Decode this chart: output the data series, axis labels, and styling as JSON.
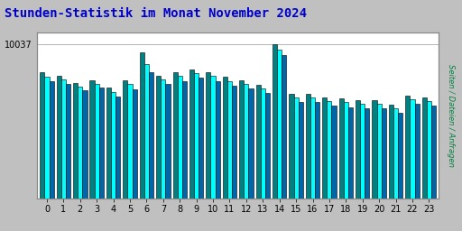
{
  "title": "Stunden-Statistik im Monat November 2024",
  "title_color": "#0000cc",
  "ylabel_right": "Seiten / Dateien / Anfragen",
  "ylabel_right_color": "#008040",
  "ytick_label": "10037",
  "background_color": "#c0c0c0",
  "plot_bg_color": "#ffffff",
  "bar_border_color": "#000000",
  "hours": [
    0,
    1,
    2,
    3,
    4,
    5,
    6,
    7,
    8,
    9,
    10,
    11,
    12,
    13,
    14,
    15,
    16,
    17,
    18,
    19,
    20,
    21,
    22,
    23
  ],
  "seiten": [
    0.82,
    0.8,
    0.75,
    0.77,
    0.72,
    0.77,
    0.95,
    0.8,
    0.82,
    0.84,
    0.82,
    0.79,
    0.77,
    0.74,
    1.0,
    0.68,
    0.68,
    0.66,
    0.65,
    0.64,
    0.64,
    0.61,
    0.67,
    0.66
  ],
  "dateien": [
    0.79,
    0.775,
    0.73,
    0.748,
    0.695,
    0.748,
    0.875,
    0.775,
    0.795,
    0.815,
    0.795,
    0.765,
    0.745,
    0.715,
    0.97,
    0.655,
    0.655,
    0.635,
    0.625,
    0.615,
    0.615,
    0.585,
    0.645,
    0.635
  ],
  "anfragen": [
    0.76,
    0.745,
    0.705,
    0.72,
    0.665,
    0.71,
    0.82,
    0.745,
    0.765,
    0.785,
    0.765,
    0.735,
    0.715,
    0.685,
    0.93,
    0.625,
    0.625,
    0.605,
    0.595,
    0.585,
    0.585,
    0.555,
    0.615,
    0.605
  ],
  "bar_width": 0.28,
  "color_seiten": "#008080",
  "color_dateien": "#00ffff",
  "color_anfragen": "#0066aa",
  "ylim_max": 1.08,
  "xlim_min": -0.6,
  "xlim_max": 23.6,
  "grid_color": "#aaaaaa",
  "outer_border_color": "#888888",
  "tick_fontsize": 7,
  "title_fontsize": 10
}
